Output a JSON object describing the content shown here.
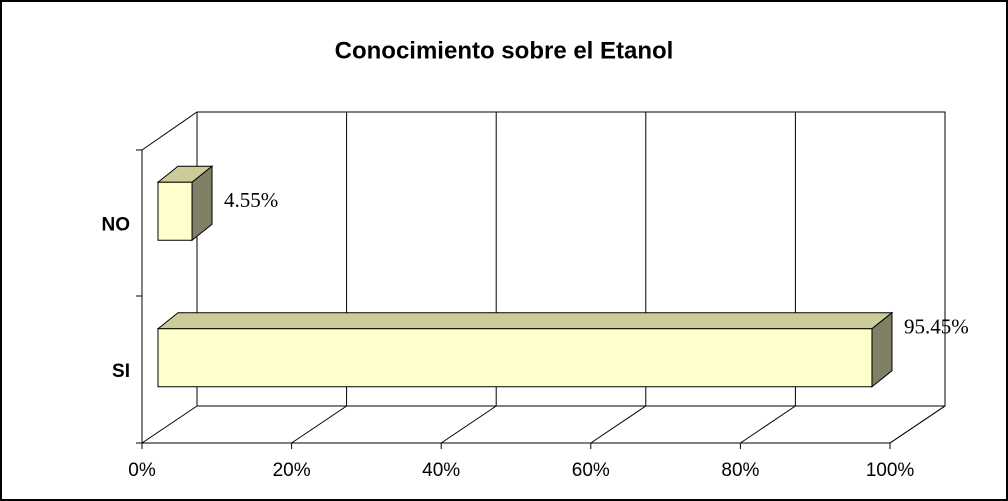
{
  "chart_data": {
    "type": "bar3d_horizontal",
    "title": "Conocimiento sobre el Etanol",
    "categories": [
      "NO",
      "SI"
    ],
    "values": [
      4.55,
      95.45
    ],
    "value_labels": [
      "4.55%",
      "95.45%"
    ],
    "color": "#ffffcc",
    "xlim": [
      0,
      100
    ],
    "xticks": [
      {
        "value": 0,
        "label": "0%"
      },
      {
        "value": 20,
        "label": "20%"
      },
      {
        "value": 40,
        "label": "40%"
      },
      {
        "value": 60,
        "label": "60%"
      },
      {
        "value": 80,
        "label": "80%"
      },
      {
        "value": 100,
        "label": "100%"
      }
    ],
    "grid": true
  }
}
